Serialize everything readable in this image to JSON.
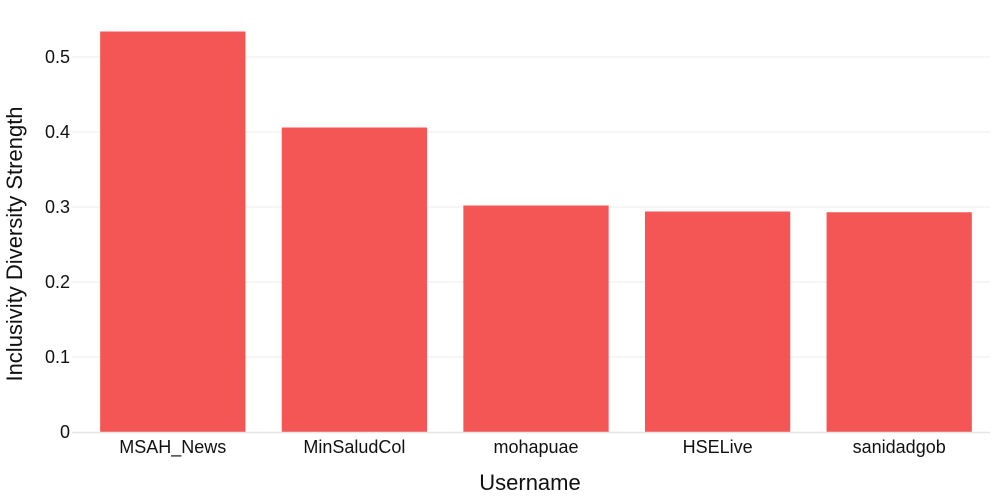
{
  "chart_data": {
    "type": "bar",
    "categories": [
      "MSAH_News",
      "MinSaludCol",
      "mohapuae",
      "HSELive",
      "sanidadgob"
    ],
    "values": [
      0.534,
      0.406,
      0.302,
      0.294,
      0.293
    ],
    "xlabel": "Username",
    "ylabel": "Inclusivity Diversity Strength",
    "ylim": [
      0,
      0.55
    ],
    "yticks": [
      0,
      0.1,
      0.2,
      0.3,
      0.4,
      0.5
    ],
    "ytick_labels": [
      "0",
      "0.1",
      "0.2",
      "0.3",
      "0.4",
      "0.5"
    ],
    "grid": true,
    "legend": "none",
    "bar_color": "#f45555"
  }
}
